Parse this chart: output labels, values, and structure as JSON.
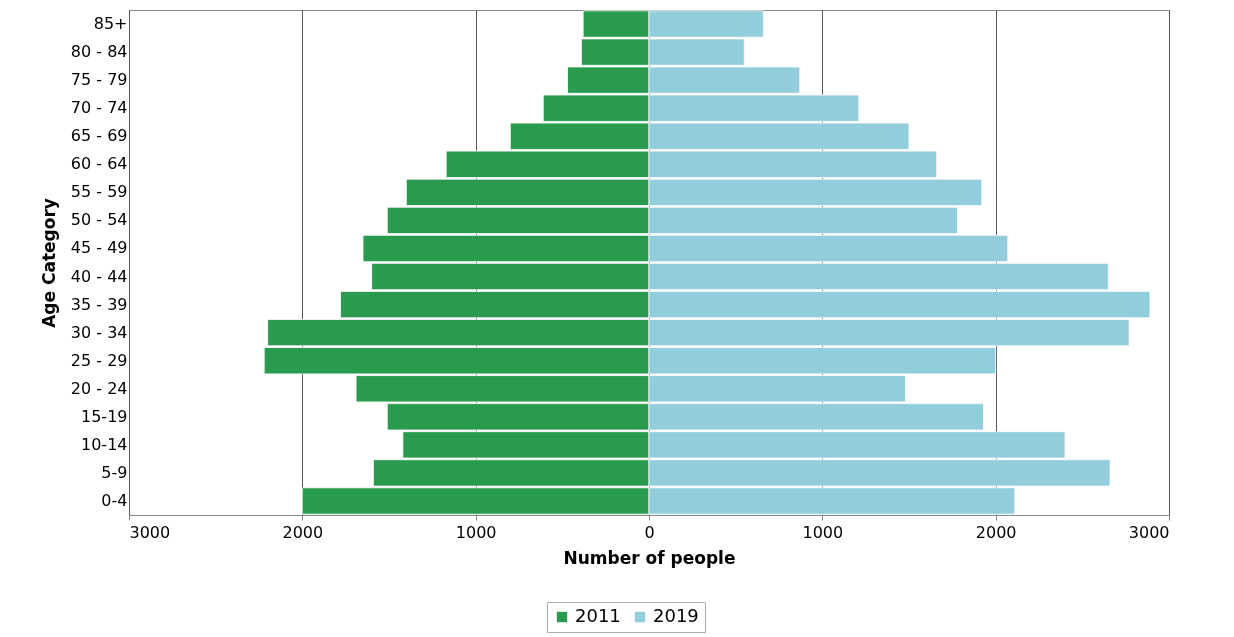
{
  "chart_data": {
    "type": "bar",
    "orientation": "horizontal",
    "xlabel": "Number of people",
    "ylabel": "Age Category",
    "categories": [
      "85+",
      "80 - 84",
      "75 - 79",
      "70 - 74",
      "65 - 69",
      "60 - 64",
      "55 - 59",
      "50 - 54",
      "45 - 49",
      "40 - 44",
      "35 - 39",
      "30 - 34",
      "25 - 29",
      "20 - 24",
      "15-19",
      "10-14",
      "5-9",
      "0-4"
    ],
    "series": [
      {
        "name": "2011",
        "color": "#2a9a4f",
        "values": [
          -380,
          -390,
          -470,
          -610,
          -800,
          -1170,
          -1400,
          -1510,
          -1650,
          -1600,
          -1780,
          -2200,
          -2220,
          -1690,
          -1510,
          -1420,
          -1590,
          -2000
        ]
      },
      {
        "name": "2019",
        "color": "#92cddc",
        "values": [
          660,
          550,
          870,
          1210,
          1500,
          1660,
          1920,
          1780,
          2070,
          2650,
          2890,
          2770,
          2000,
          1480,
          1930,
          2400,
          2660,
          2110
        ]
      }
    ],
    "xlim": [
      -3000,
      3000
    ],
    "xticks": [
      {
        "value": -3000,
        "label": "3000"
      },
      {
        "value": -2000,
        "label": "2000"
      },
      {
        "value": -1000,
        "label": "1000"
      },
      0,
      1000,
      2000,
      3000
    ],
    "grid": "x",
    "legend": "bottom",
    "stacked": true
  }
}
